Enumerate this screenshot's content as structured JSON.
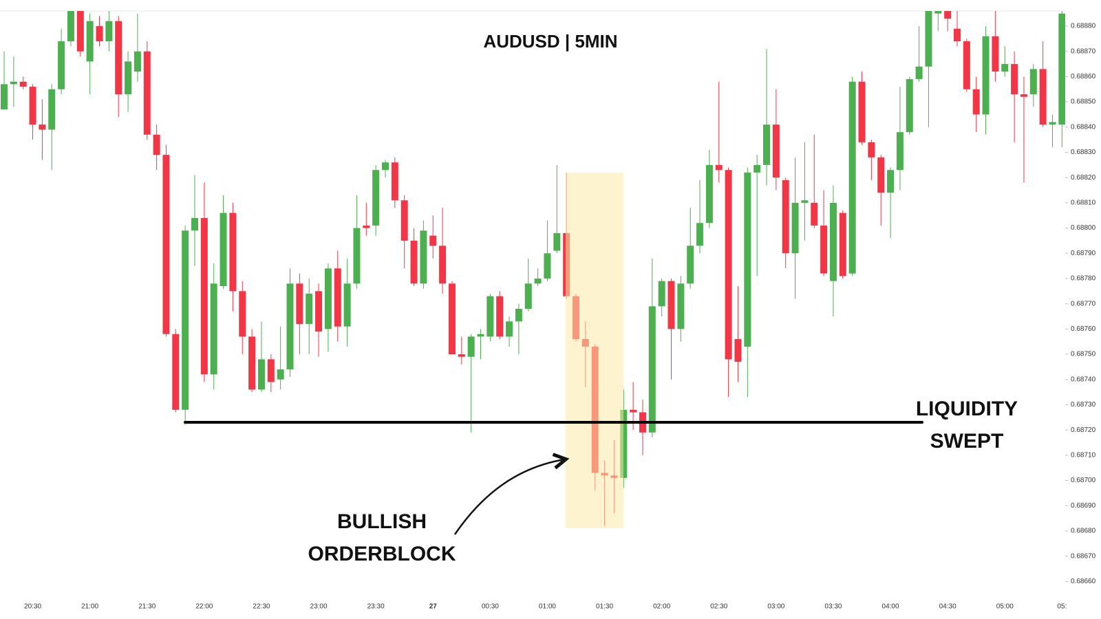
{
  "chart_data": {
    "type": "candlestick",
    "title": "AUDUSD | 5MIN",
    "categories": [
      null,
      null,
      null,
      "20:30",
      null,
      null,
      null,
      null,
      null,
      "21:00",
      null,
      null,
      null,
      null,
      null,
      "21:30",
      null,
      null,
      null,
      null,
      null,
      "22:00",
      null,
      null,
      null,
      null,
      null,
      "22:30",
      null,
      null,
      null,
      null,
      null,
      "23:00",
      null,
      null,
      null,
      null,
      null,
      "23:30",
      null,
      null,
      null,
      null,
      null,
      "27",
      null,
      null,
      null,
      null,
      null,
      "00:30",
      null,
      null,
      null,
      null,
      null,
      "01:00",
      null,
      null,
      null,
      null,
      null,
      "01:30",
      null,
      null,
      null,
      null,
      null,
      "02:00",
      null,
      null,
      null,
      null,
      null,
      "02:30",
      null,
      null,
      null,
      null,
      null,
      "03:00",
      null,
      null,
      null,
      null,
      null,
      "03:30",
      null,
      null,
      null,
      null,
      null,
      "04:00",
      null,
      null,
      null,
      null,
      null,
      "04:30",
      null,
      null,
      null,
      null,
      null,
      "05:00",
      null,
      null,
      null,
      null,
      null,
      "05:"
    ],
    "open": [
      0.68847,
      0.68857,
      0.68858,
      0.68856,
      0.68841,
      0.68839,
      0.68855,
      0.68874,
      0.68886,
      0.68866,
      0.6888,
      0.68874,
      0.68882,
      0.68853,
      0.68862,
      0.6887,
      0.68837,
      0.68829,
      0.68758,
      0.68728,
      0.68799,
      0.68804,
      0.68742,
      0.68777,
      0.68806,
      0.68775,
      0.68757,
      0.68736,
      0.68748,
      0.6874,
      0.68744,
      0.68778,
      0.68762,
      0.68775,
      0.6876,
      0.68784,
      0.68761,
      0.68778,
      0.68801,
      0.68801,
      0.68823,
      0.68826,
      0.68811,
      0.68795,
      0.68778,
      0.68797,
      0.68793,
      0.68778,
      0.6875,
      0.68749,
      0.68757,
      0.68757,
      0.68773,
      0.68757,
      0.68763,
      0.68768,
      0.68778,
      0.6878,
      0.68791,
      0.68798,
      0.68773,
      0.68756,
      0.68753,
      0.68703,
      0.68702,
      0.68701,
      0.68728,
      0.68727,
      0.68719,
      0.68769,
      0.68779,
      0.6876,
      0.68778,
      0.68793,
      0.68802,
      0.68825,
      0.68823,
      0.68756,
      0.68753,
      0.68822,
      0.68825,
      0.68841,
      0.68819,
      0.6879,
      0.6881,
      0.6881,
      0.68801,
      0.68779,
      0.68806,
      0.68782,
      0.68858,
      0.68834,
      0.68828,
      0.68814,
      0.68823,
      0.68838,
      0.68859,
      0.68864,
      0.68885,
      0.68886,
      0.68879,
      0.68874,
      0.68855,
      0.68845,
      0.68876,
      0.68862,
      0.68865,
      0.68853,
      0.68853,
      0.68863,
      0.68841,
      0.68841
    ],
    "high": [
      0.6887,
      0.68868,
      0.6886,
      0.68857,
      0.68851,
      0.68857,
      0.68879,
      0.68886,
      0.68886,
      0.68885,
      0.68884,
      0.68886,
      0.68884,
      0.6887,
      0.68885,
      0.68874,
      0.68841,
      0.68833,
      0.6876,
      0.68801,
      0.68821,
      0.68818,
      0.68786,
      0.68813,
      0.6881,
      0.68779,
      0.6876,
      0.68763,
      0.6875,
      0.68761,
      0.68784,
      0.68782,
      0.6878,
      0.68778,
      0.68786,
      0.68791,
      0.68788,
      0.68813,
      0.6881,
      0.68825,
      0.68827,
      0.68828,
      0.68813,
      0.688,
      0.68803,
      0.68805,
      0.68808,
      0.68779,
      0.68757,
      0.68758,
      0.6876,
      0.68774,
      0.68775,
      0.68765,
      0.6877,
      0.68788,
      0.68784,
      0.68803,
      0.68825,
      0.68822,
      0.68774,
      0.68763,
      0.68754,
      0.68708,
      0.68716,
      0.68736,
      0.68739,
      0.68732,
      0.68788,
      0.6878,
      0.6878,
      0.68781,
      0.68808,
      0.68819,
      0.68831,
      0.68858,
      0.68824,
      0.68777,
      0.68824,
      0.68829,
      0.68871,
      0.68855,
      0.6882,
      0.68828,
      0.68834,
      0.68837,
      0.68815,
      0.68817,
      0.68807,
      0.6886,
      0.68862,
      0.68835,
      0.68829,
      0.68824,
      0.68856,
      0.6886,
      0.6888,
      0.68886,
      0.68886,
      0.68886,
      0.68886,
      0.68875,
      0.6886,
      0.6888,
      0.68886,
      0.68872,
      0.6887,
      0.6886,
      0.68865,
      0.68874,
      0.68845,
      0.68886
    ],
    "low": [
      0.68847,
      0.68848,
      0.68855,
      0.68835,
      0.68827,
      0.68823,
      0.68853,
      0.68872,
      0.68868,
      0.68853,
      0.68872,
      0.6887,
      0.68844,
      0.68846,
      0.68858,
      0.68835,
      0.68823,
      0.68757,
      0.68727,
      0.68722,
      0.68785,
      0.68739,
      0.68736,
      0.68776,
      0.68767,
      0.6875,
      0.68735,
      0.68735,
      0.68735,
      0.68736,
      0.68741,
      0.6875,
      0.6875,
      0.68749,
      0.68751,
      0.68755,
      0.68753,
      0.68776,
      0.68797,
      0.68797,
      0.6882,
      0.68808,
      0.68784,
      0.68777,
      0.68776,
      0.68788,
      0.68774,
      0.6875,
      0.68746,
      0.68719,
      0.68748,
      0.68755,
      0.68756,
      0.68753,
      0.6875,
      0.68767,
      0.68777,
      0.68779,
      0.6879,
      0.68772,
      0.68755,
      0.68737,
      0.68696,
      0.68682,
      0.68687,
      0.68697,
      0.6872,
      0.6871,
      0.68717,
      0.68765,
      0.6874,
      0.68755,
      0.68776,
      0.6879,
      0.688,
      0.68818,
      0.68733,
      0.68739,
      0.68733,
      0.68781,
      0.68817,
      0.68815,
      0.68784,
      0.68772,
      0.68795,
      0.688,
      0.68781,
      0.68765,
      0.6878,
      0.68781,
      0.68833,
      0.68819,
      0.68801,
      0.68796,
      0.68815,
      0.68837,
      0.68858,
      0.6884,
      0.68878,
      0.68878,
      0.68872,
      0.68854,
      0.68838,
      0.68837,
      0.68858,
      0.6886,
      0.68834,
      0.68818,
      0.68848,
      0.6884,
      0.68832,
      0.68832
    ],
    "close": [
      0.68857,
      0.68858,
      0.68856,
      0.68841,
      0.68839,
      0.68855,
      0.68874,
      0.68886,
      0.6887,
      0.68882,
      0.68874,
      0.68882,
      0.68853,
      0.68866,
      0.6887,
      0.68837,
      0.68829,
      0.68758,
      0.68728,
      0.68799,
      0.68804,
      0.68742,
      0.68778,
      0.68806,
      0.68775,
      0.68757,
      0.68736,
      0.68748,
      0.68739,
      0.68744,
      0.68778,
      0.68762,
      0.68774,
      0.68759,
      0.68784,
      0.68761,
      0.68778,
      0.688,
      0.688,
      0.68823,
      0.68826,
      0.68811,
      0.68795,
      0.68778,
      0.68799,
      0.68793,
      0.68778,
      0.6875,
      0.68749,
      0.68757,
      0.68758,
      0.68773,
      0.68757,
      0.68763,
      0.68768,
      0.68778,
      0.6878,
      0.6879,
      0.68798,
      0.68773,
      0.68756,
      0.68753,
      0.68703,
      0.68702,
      0.68701,
      0.68728,
      0.68727,
      0.68719,
      0.68769,
      0.68779,
      0.6876,
      0.68778,
      0.68793,
      0.68802,
      0.68825,
      0.68823,
      0.68748,
      0.68747,
      0.68822,
      0.68825,
      0.68841,
      0.6882,
      0.6879,
      0.6881,
      0.68811,
      0.68801,
      0.68782,
      0.6881,
      0.68781,
      0.68858,
      0.68834,
      0.68828,
      0.68814,
      0.68823,
      0.68838,
      0.68859,
      0.68864,
      0.68886,
      0.68886,
      0.68883,
      0.68874,
      0.68855,
      0.68845,
      0.68876,
      0.68862,
      0.68865,
      0.68853,
      0.68852,
      0.68863,
      0.68841,
      0.68842,
      0.68885
    ],
    "up_color": "#4caf50",
    "down_color": "#f23645",
    "ylim": [
      0.68656,
      0.68886
    ],
    "yticks": [
      {
        "value": 0.6866,
        "label": "0.68660"
      },
      {
        "value": 0.6867,
        "label": "0.68670"
      },
      {
        "value": 0.6868,
        "label": "0.68680"
      },
      {
        "value": 0.6869,
        "label": "0.68690"
      },
      {
        "value": 0.687,
        "label": "0.68700"
      },
      {
        "value": 0.6871,
        "label": "0.68710"
      },
      {
        "value": 0.6872,
        "label": "0.68720"
      },
      {
        "value": 0.6873,
        "label": "0.68730"
      },
      {
        "value": 0.6874,
        "label": "0.68740"
      },
      {
        "value": 0.6875,
        "label": "0.68750"
      },
      {
        "value": 0.6876,
        "label": "0.68760"
      },
      {
        "value": 0.6877,
        "label": "0.68770"
      },
      {
        "value": 0.6878,
        "label": "0.68780"
      },
      {
        "value": 0.6879,
        "label": "0.68790"
      },
      {
        "value": 0.688,
        "label": "0.68800"
      },
      {
        "value": 0.6881,
        "label": "0.68810"
      },
      {
        "value": 0.6882,
        "label": "0.68820"
      },
      {
        "value": 0.6883,
        "label": "0.68830"
      },
      {
        "value": 0.6884,
        "label": "0.68840"
      },
      {
        "value": 0.6885,
        "label": "0.68850"
      },
      {
        "value": 0.6886,
        "label": "0.68860"
      },
      {
        "value": 0.6887,
        "label": "0.68870"
      },
      {
        "value": 0.6888,
        "label": "0.68880"
      }
    ],
    "annotations": [
      {
        "lines": [
          "LIQUIDITY",
          "SWEPT"
        ]
      },
      {
        "lines": [
          "BULLISH",
          "ORDERBLOCK"
        ]
      }
    ]
  }
}
